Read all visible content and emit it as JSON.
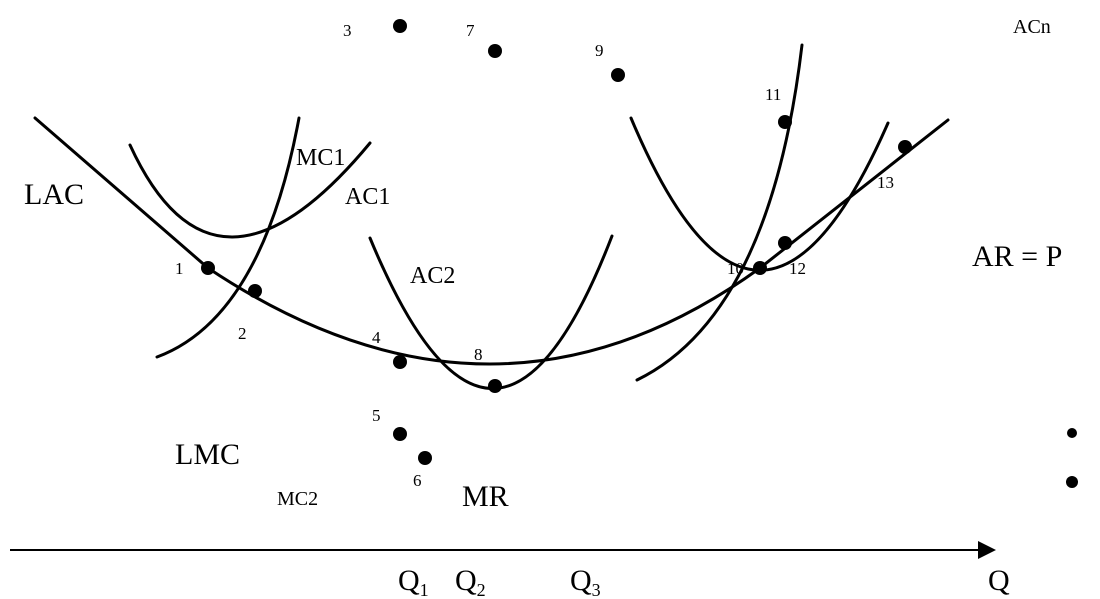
{
  "labels": {
    "lac": "LAC",
    "lmc": "LMC",
    "mc1": "MC1",
    "ac1": "AC1",
    "ac2": "AC2",
    "mc2": "MC2",
    "acn": "ACn",
    "ar": "AR = P",
    "mr": "MR"
  },
  "axis": {
    "x_label": "Q",
    "ticks": [
      {
        "main": "Q",
        "sub": "1"
      },
      {
        "main": "Q",
        "sub": "2"
      },
      {
        "main": "Q",
        "sub": "3"
      }
    ]
  },
  "points": [
    "1",
    "2",
    "3",
    "4",
    "5",
    "6",
    "7",
    "8",
    "9",
    "10",
    "11",
    "12",
    "13"
  ],
  "colors": {
    "ink": "#000000",
    "background": "#ffffff"
  }
}
